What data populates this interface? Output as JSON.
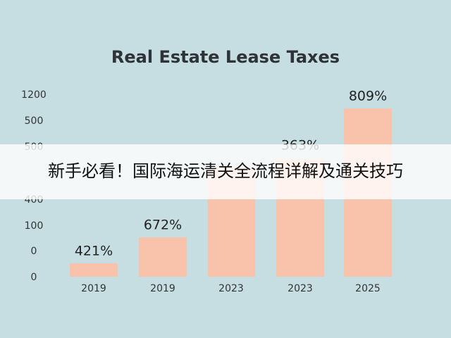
{
  "title": "Real Estate Lease Taxes",
  "y_axis_labels": [
    "1200",
    "500",
    "500",
    "400",
    "100",
    "0",
    "0"
  ],
  "categories": [
    "2019",
    "2019",
    "2023",
    "2023",
    "2025"
  ],
  "value_labels": [
    "421%",
    "672%",
    "363%",
    "809%"
  ],
  "banner": "新手必看！国际海运清关全流程详解及通关技巧"
}
